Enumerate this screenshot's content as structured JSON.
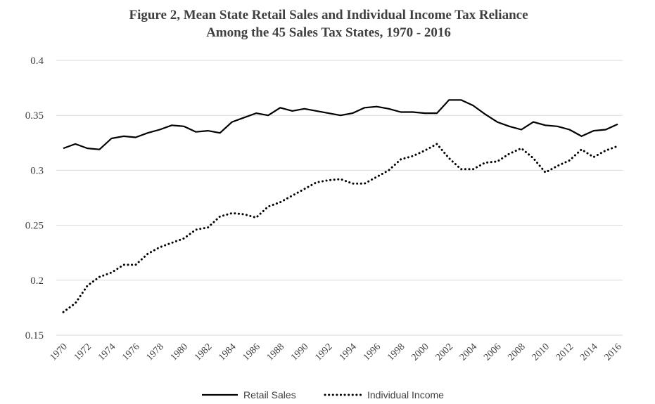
{
  "chart_data": {
    "type": "line",
    "title": "Figure 2,  Mean State Retail Sales and Individual Income Tax Reliance",
    "subtitle": "Among the 45 Sales Tax States, 1970 - 2016",
    "ylim": [
      0.15,
      0.4
    ],
    "yticks": [
      "0.15",
      "0.2",
      "0.25",
      "0.3",
      "0.35",
      "0.4"
    ],
    "grid": true,
    "legend_position": "bottom",
    "x": [
      1970,
      1971,
      1972,
      1973,
      1974,
      1975,
      1976,
      1977,
      1978,
      1979,
      1980,
      1981,
      1982,
      1983,
      1984,
      1985,
      1986,
      1987,
      1988,
      1989,
      1990,
      1991,
      1992,
      1993,
      1994,
      1995,
      1996,
      1997,
      1998,
      1999,
      2000,
      2001,
      2002,
      2003,
      2004,
      2005,
      2006,
      2007,
      2008,
      2009,
      2010,
      2011,
      2012,
      2013,
      2014,
      2015,
      2016
    ],
    "xtick_labels": [
      "1970",
      "1972",
      "1974",
      "1976",
      "1978",
      "1980",
      "1982",
      "1984",
      "1986",
      "1988",
      "1990",
      "1992",
      "1994",
      "1996",
      "1998",
      "2000",
      "2002",
      "2004",
      "2006",
      "2008",
      "2010",
      "2012",
      "2014",
      "2016"
    ],
    "series": [
      {
        "name": "Retail Sales",
        "style": "solid",
        "color": "#000000",
        "values": [
          0.32,
          0.324,
          0.32,
          0.319,
          0.329,
          0.331,
          0.33,
          0.334,
          0.337,
          0.341,
          0.34,
          0.335,
          0.336,
          0.334,
          0.344,
          0.348,
          0.352,
          0.35,
          0.357,
          0.354,
          0.356,
          0.354,
          0.352,
          0.35,
          0.352,
          0.357,
          0.358,
          0.356,
          0.353,
          0.353,
          0.352,
          0.352,
          0.364,
          0.364,
          0.359,
          0.351,
          0.344,
          0.34,
          0.337,
          0.344,
          0.341,
          0.34,
          0.337,
          0.331,
          0.336,
          0.337,
          0.342
        ]
      },
      {
        "name": "Individual Income",
        "style": "dotted",
        "color": "#000000",
        "values": [
          0.171,
          0.179,
          0.195,
          0.203,
          0.207,
          0.214,
          0.214,
          0.224,
          0.23,
          0.234,
          0.238,
          0.246,
          0.248,
          0.258,
          0.261,
          0.26,
          0.257,
          0.267,
          0.271,
          0.277,
          0.283,
          0.289,
          0.291,
          0.292,
          0.288,
          0.288,
          0.294,
          0.3,
          0.31,
          0.313,
          0.318,
          0.324,
          0.311,
          0.301,
          0.301,
          0.307,
          0.308,
          0.315,
          0.32,
          0.311,
          0.298,
          0.304,
          0.309,
          0.319,
          0.312,
          0.318,
          0.322
        ]
      }
    ]
  }
}
